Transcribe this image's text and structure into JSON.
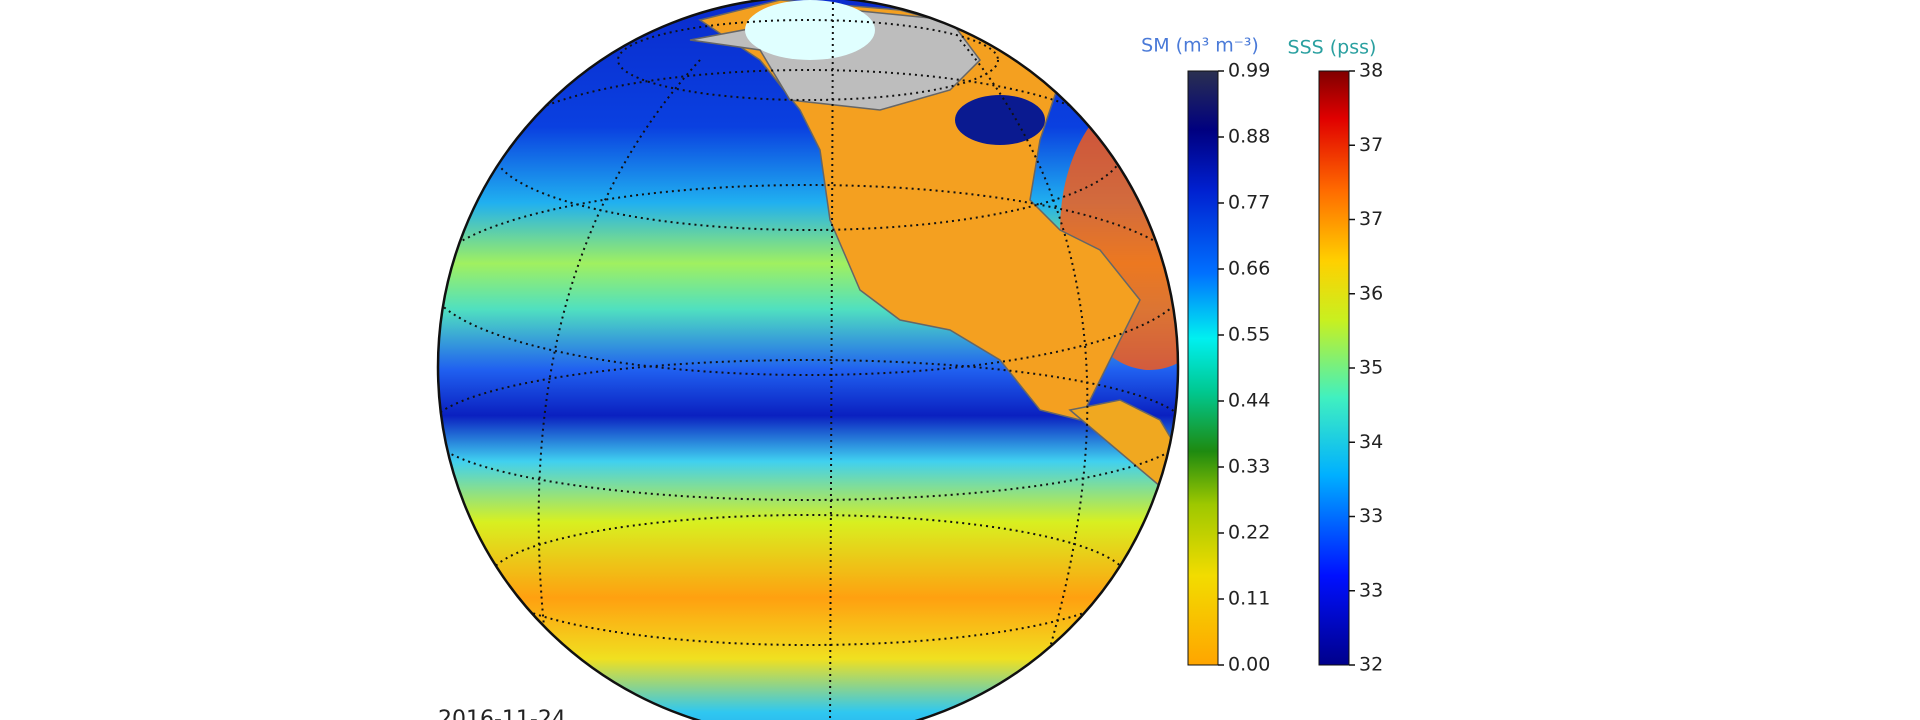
{
  "colorbars": [
    {
      "title": "SM (m³ m⁻³)",
      "ticks": [
        "0.99",
        "0.88",
        "0.77",
        "0.66",
        "0.55",
        "0.44",
        "0.33",
        "0.22",
        "0.11",
        "0.00"
      ]
    },
    {
      "title": "SSS (pss)",
      "ticks": [
        "38",
        "37",
        "37",
        "36",
        "35",
        "34",
        "33",
        "33",
        "32"
      ]
    }
  ],
  "date": "2016-11-24"
}
